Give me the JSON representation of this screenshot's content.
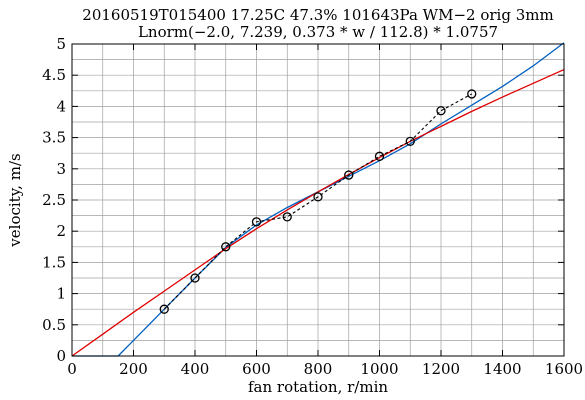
{
  "chart_data": {
    "type": "line",
    "title": "20160519T015400 17.25C 47.3% 101643Pa WM−2 orig 3mm",
    "subtitle": "Lnorm(−2.0, 7.239, 0.373 * w / 112.8) * 1.0757",
    "xlabel": "fan rotation, r/min",
    "ylabel": "velocity, m/s",
    "xlim": [
      0,
      1600
    ],
    "ylim": [
      0,
      5
    ],
    "xticks": [
      0,
      200,
      400,
      600,
      800,
      1000,
      1200,
      1400,
      1600
    ],
    "xtick_labels": [
      "0",
      "200",
      "400",
      "600",
      "800",
      "1000",
      "1200",
      "1400",
      "1600"
    ],
    "yticks": [
      0,
      0.5,
      1,
      1.5,
      2,
      2.5,
      3,
      3.5,
      4,
      4.5,
      5
    ],
    "ytick_labels": [
      "0",
      "0.5",
      "1",
      "1.5",
      "2",
      "2.5",
      "3",
      "3.5",
      "4",
      "4.5",
      "5"
    ],
    "x_minor_step": 100,
    "y_minor_step": 0.25,
    "grid": true,
    "series": [
      {
        "kind": "markers-dashed",
        "color": "#000000",
        "x": [
          300,
          400,
          500,
          600,
          700,
          800,
          900,
          1000,
          1100,
          1200,
          1300
        ],
        "y": [
          0.75,
          1.25,
          1.75,
          2.15,
          2.23,
          2.55,
          2.9,
          3.2,
          3.44,
          3.93,
          4.2
        ]
      },
      {
        "kind": "line",
        "color": "#0060c0",
        "x": [
          0,
          150,
          200,
          300,
          400,
          500,
          600,
          700,
          800,
          900,
          1000,
          1100,
          1200,
          1300,
          1400,
          1500,
          1600
        ],
        "y": [
          0,
          0,
          0.25,
          0.75,
          1.25,
          1.74,
          2.1,
          2.38,
          2.63,
          2.88,
          3.13,
          3.4,
          3.72,
          4.02,
          4.32,
          4.65,
          5.02
        ]
      },
      {
        "kind": "line",
        "color": "#e00000",
        "x": [
          0,
          100,
          200,
          300,
          400,
          500,
          600,
          700,
          800,
          900,
          1000,
          1100,
          1200,
          1300,
          1400,
          1500,
          1600
        ],
        "y": [
          0,
          0.35,
          0.7,
          1.04,
          1.38,
          1.72,
          2.04,
          2.34,
          2.63,
          2.91,
          3.18,
          3.44,
          3.68,
          3.92,
          4.15,
          4.37,
          4.59
        ]
      }
    ]
  }
}
